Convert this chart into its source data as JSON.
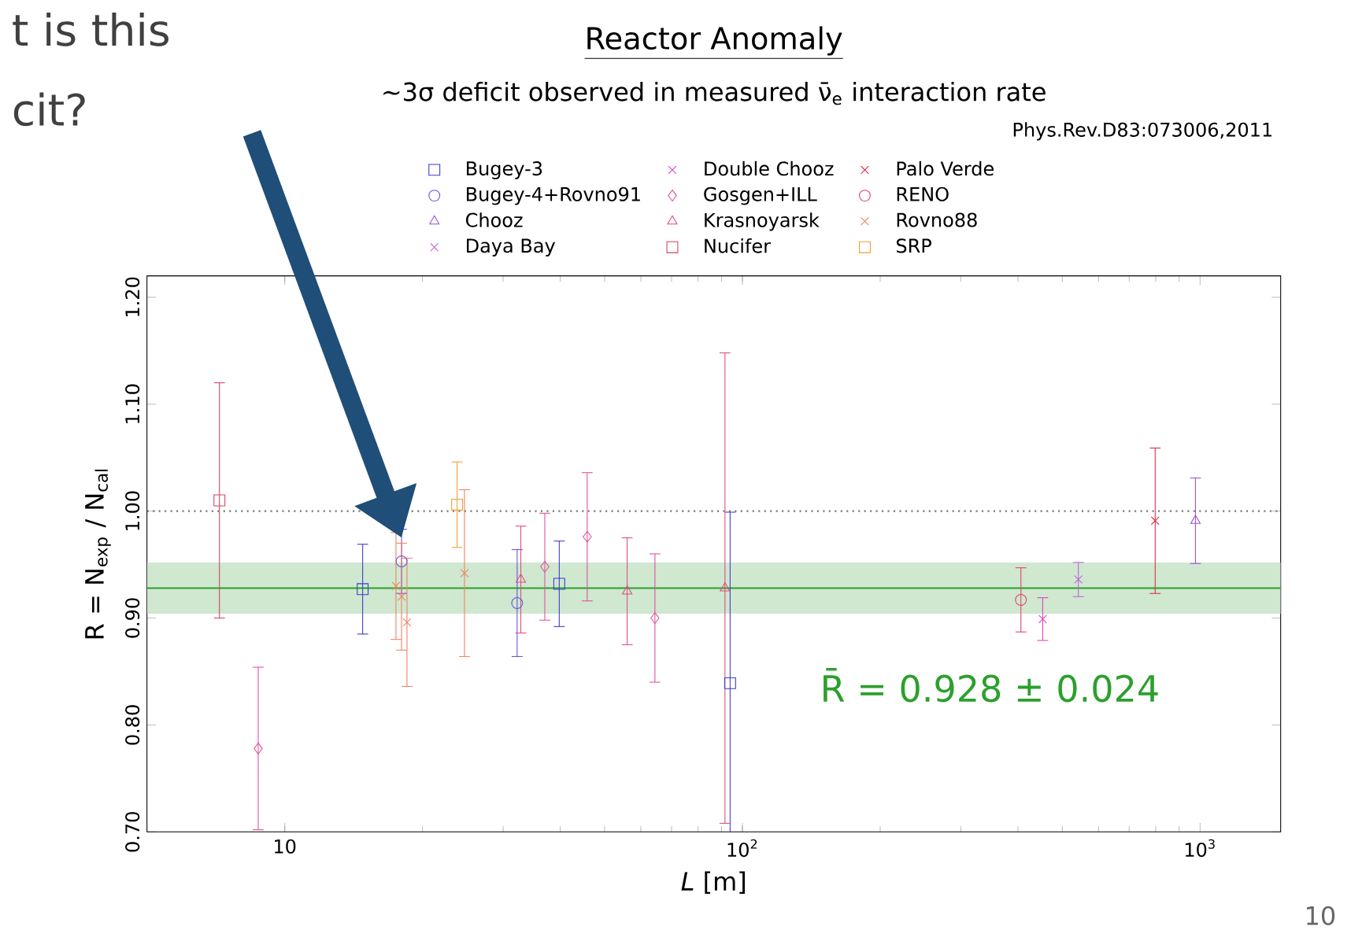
{
  "chart_data": {
    "type": "scatter",
    "title": "Reactor Anomaly",
    "subtitle": "~3σ deficit observed in measured ν̄$_{e}$ interaction rate",
    "xlabel": "*L*  [m]",
    "ylabel": "R = N$_{exp}$ / N$_{cal}$",
    "annotations": [
      "Phys.Rev.D83:073006,2011",
      "R̄ = 0.928 ± 0.024",
      "t is this",
      "cit?",
      "10"
    ],
    "log": "x",
    "xlim": [
      5,
      1500
    ],
    "xticks": [
      10,
      {
        "value": 100,
        "label": "10$^{2}$"
      },
      {
        "value": 1000,
        "label": "10$^{3}$"
      }
    ],
    "ylim": [
      0.7,
      1.22
    ],
    "yticks": [
      {
        "value": 0.7,
        "label": "0.70"
      },
      {
        "value": 0.8,
        "label": "0.80"
      },
      {
        "value": 0.9,
        "label": "0.90"
      },
      {
        "value": 1.0,
        "label": "1.00"
      },
      {
        "value": 1.1,
        "label": "1.10"
      },
      {
        "value": 1.2,
        "label": "1.20"
      }
    ],
    "legend": "top",
    "ref_lines": [
      {
        "axis": "y",
        "value": 1.0,
        "color": "#777777",
        "line_style": "dotted"
      },
      {
        "axis": "y",
        "value": 0.928,
        "color": "#2ca02c",
        "line_style": "solid"
      }
    ],
    "bands": [
      {
        "axis": "y",
        "from": 0.904,
        "to": 0.952,
        "color": "#cfe8cf"
      }
    ],
    "series": [
      {
        "name": "Bugey-3",
        "color": "#3a3acf",
        "marker": "square",
        "x": [
          14.8,
          39.8,
          94
        ],
        "values": [
          0.927,
          0.932,
          0.839
        ],
        "errors": [
          0.042,
          0.04,
          0.16
        ]
      },
      {
        "name": "Bugey-4+Rovno91",
        "color": "#6a4fe0",
        "marker": "circle",
        "x": [
          18.0,
          32.2
        ],
        "values": [
          0.953,
          0.914
        ],
        "errors": [
          0.03,
          0.05
        ]
      },
      {
        "name": "Chooz",
        "color": "#9a4fe0",
        "marker": "triangle",
        "x": [
          977
        ],
        "values": [
          0.991
        ],
        "errors": [
          0.04
        ]
      },
      {
        "name": "Daya Bay",
        "color": "#c060e0",
        "marker": "cross",
        "x": [
          542
        ],
        "values": [
          0.936
        ],
        "errors": [
          0.016
        ]
      },
      {
        "name": "Double Chooz",
        "color": "#e040c0",
        "marker": "cross",
        "x": [
          453
        ],
        "values": [
          0.899
        ],
        "errors": [
          0.02
        ]
      },
      {
        "name": "Gosgen+ILL",
        "color": "#e0509a",
        "marker": "diamond",
        "x": [
          8.75,
          37,
          45.8,
          64.4
        ],
        "values": [
          0.778,
          0.948,
          0.976,
          0.9
        ],
        "errors": [
          0.076,
          0.05,
          0.06,
          0.06
        ]
      },
      {
        "name": "Krasnoyarsk",
        "color": "#e04a80",
        "marker": "triangle",
        "x": [
          32.8,
          56,
          91.6
        ],
        "values": [
          0.936,
          0.925,
          0.928
        ],
        "errors": [
          0.05,
          0.05,
          0.22
        ]
      },
      {
        "name": "Nucifer",
        "color": "#d84060",
        "marker": "square",
        "x": [
          7.2
        ],
        "values": [
          1.01
        ],
        "errors": [
          0.11
        ]
      },
      {
        "name": "Palo Verde",
        "color": "#e02a40",
        "marker": "cross",
        "x": [
          798
        ],
        "values": [
          0.991
        ],
        "errors": [
          0.068
        ]
      },
      {
        "name": "RENO",
        "color": "#e0406a",
        "marker": "circle",
        "x": [
          406
        ],
        "values": [
          0.917
        ],
        "errors": [
          0.03
        ]
      },
      {
        "name": "Rovno88",
        "color": "#f08060",
        "marker": "cross",
        "x": [
          17.5,
          18.0,
          18.5,
          24.7
        ],
        "values": [
          0.93,
          0.92,
          0.896,
          0.942
        ],
        "errors": [
          0.05,
          0.05,
          0.06,
          0.078
        ]
      },
      {
        "name": "SRP",
        "color": "#f0a030",
        "marker": "square",
        "x": [
          23.8
        ],
        "values": [
          1.006
        ],
        "errors": [
          0.04
        ]
      }
    ]
  }
}
